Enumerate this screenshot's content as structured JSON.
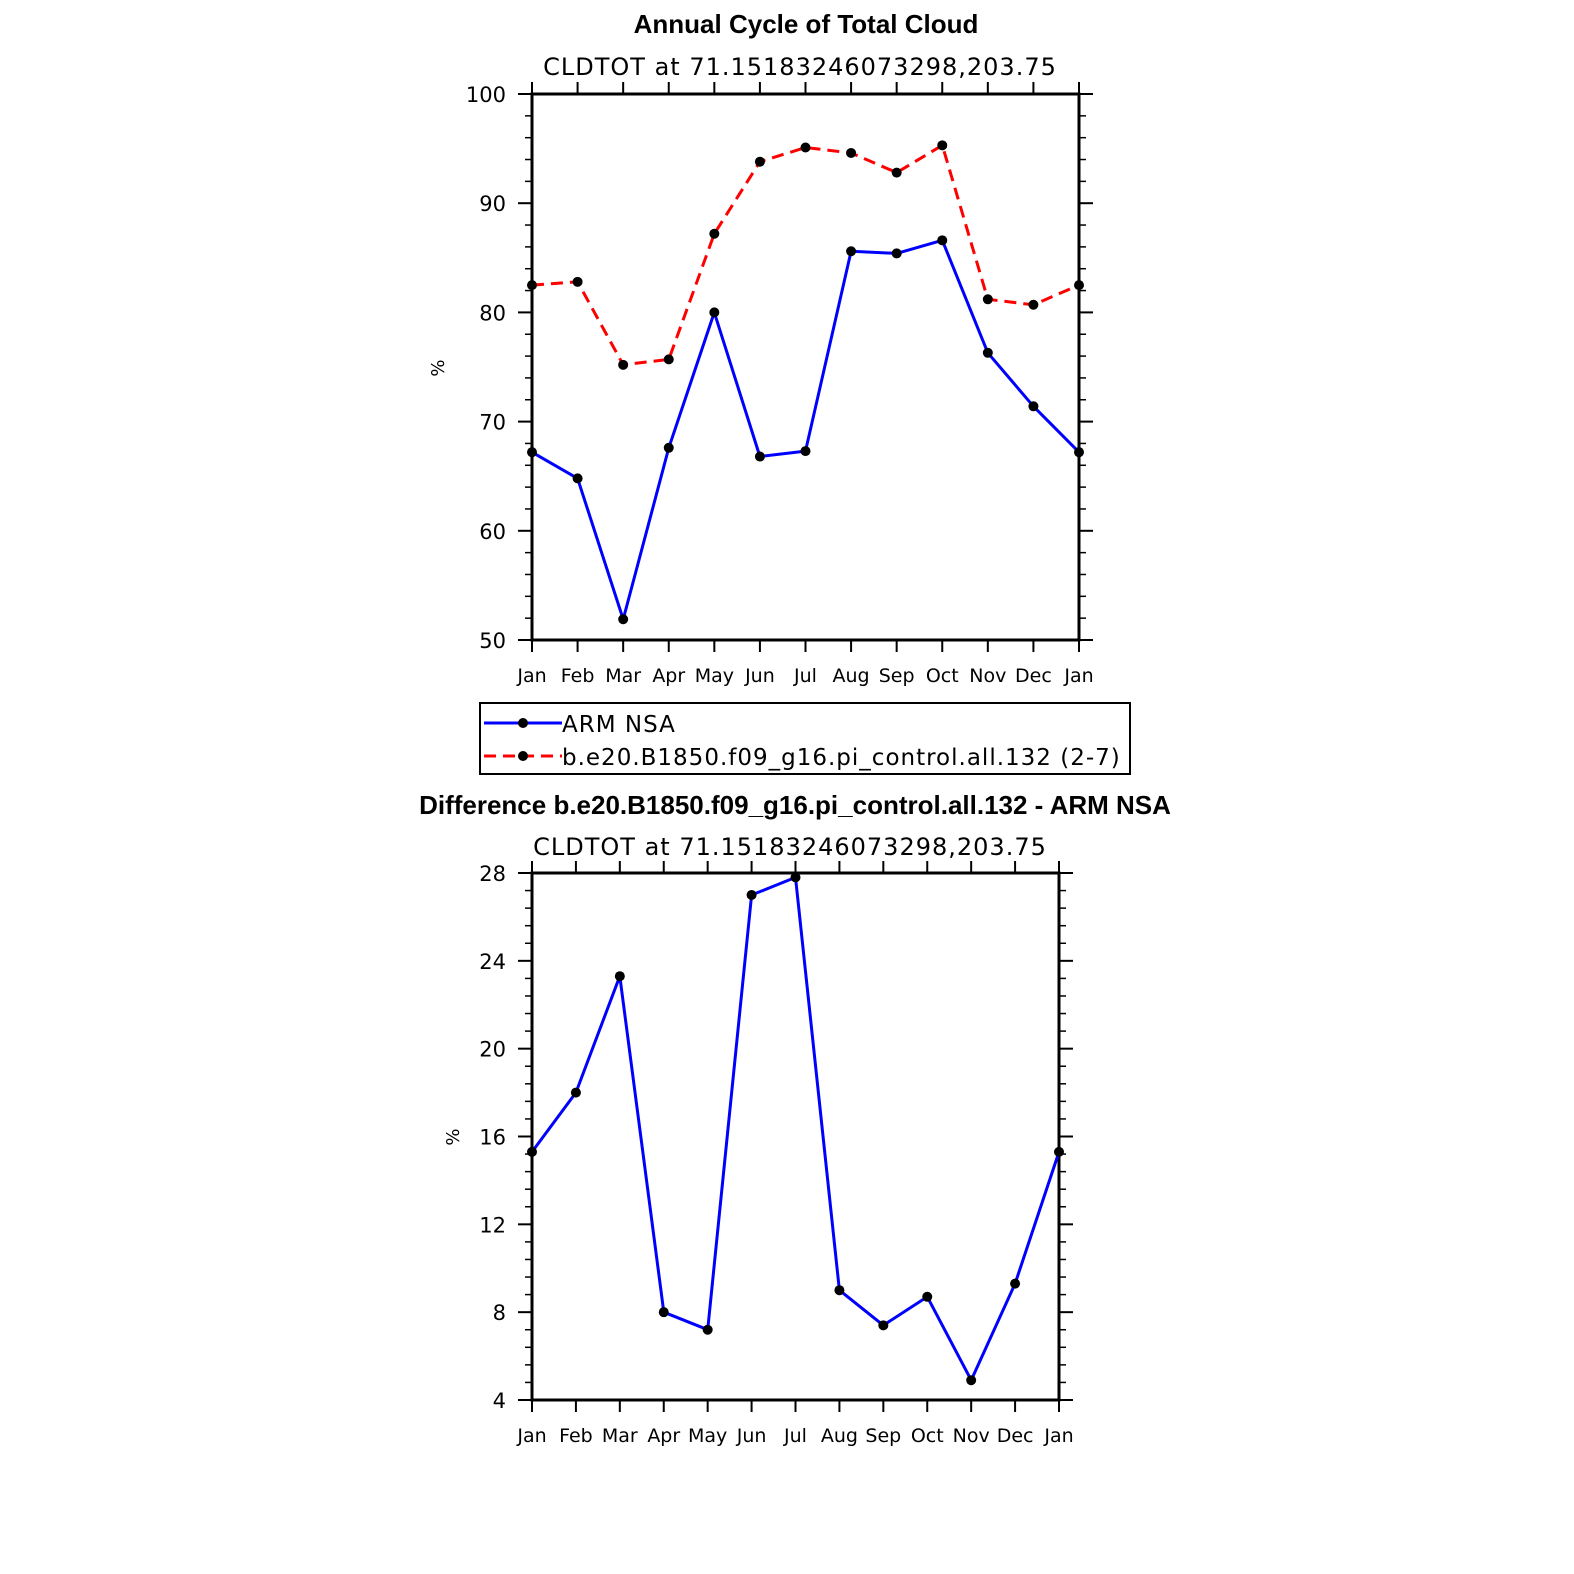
{
  "chart_data": [
    {
      "type": "line",
      "title": "Annual Cycle of Total Cloud",
      "subtitle": "CLDTOT at 71.15183246073298,203.75",
      "ylabel": "%",
      "xlabel": "",
      "categories": [
        "Jan",
        "Feb",
        "Mar",
        "Apr",
        "May",
        "Jun",
        "Jul",
        "Aug",
        "Sep",
        "Oct",
        "Nov",
        "Dec",
        "Jan"
      ],
      "ylim": [
        50,
        100
      ],
      "yticks": [
        50,
        60,
        70,
        80,
        90,
        100
      ],
      "series": [
        {
          "name": "ARM NSA",
          "color": "#0000ff",
          "dash": "solid",
          "values": [
            67.2,
            64.8,
            51.9,
            67.6,
            80.0,
            66.8,
            67.3,
            85.6,
            85.4,
            86.6,
            76.3,
            71.4,
            67.2
          ]
        },
        {
          "name": "b.e20.B1850.f09_g16.pi_control.all.132 (2-7)",
          "color": "#ff0000",
          "dash": "dashed",
          "values": [
            82.5,
            82.8,
            75.2,
            75.7,
            87.2,
            93.8,
            95.1,
            94.6,
            92.8,
            95.3,
            81.2,
            80.7,
            82.5
          ]
        }
      ]
    },
    {
      "type": "line",
      "title": "Difference b.e20.B1850.f09_g16.pi_control.all.132 - ARM NSA",
      "subtitle": "CLDTOT at 71.15183246073298,203.75",
      "ylabel": "%",
      "xlabel": "",
      "categories": [
        "Jan",
        "Feb",
        "Mar",
        "Apr",
        "May",
        "Jun",
        "Jul",
        "Aug",
        "Sep",
        "Oct",
        "Nov",
        "Dec",
        "Jan"
      ],
      "ylim": [
        4,
        28
      ],
      "yticks": [
        4,
        8,
        12,
        16,
        20,
        24,
        28
      ],
      "series": [
        {
          "name": "Difference",
          "color": "#0000ff",
          "dash": "solid",
          "values": [
            15.3,
            18.0,
            23.3,
            8.0,
            7.2,
            27.0,
            27.8,
            9.0,
            7.4,
            8.7,
            4.9,
            9.3,
            15.3
          ]
        }
      ]
    }
  ]
}
